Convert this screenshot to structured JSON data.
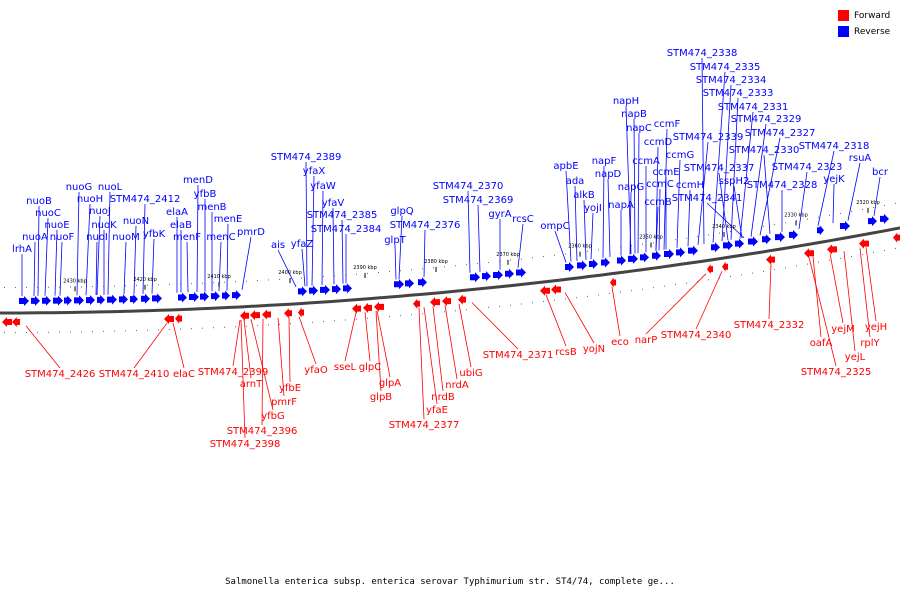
{
  "legend": {
    "forward_label": "Forward",
    "reverse_label": "Reverse",
    "forward_color": "#ff0000",
    "reverse_color": "#0000ff"
  },
  "caption": "Salmonella enterica subsp. enterica serovar Typhimurium str. ST4/74, complete ge...",
  "scale_ticks": [
    "2430 kbp",
    "2420 kbp",
    "2410 kbp",
    "2400 kbp",
    "2390 kbp",
    "2380 kbp",
    "2370 kbp",
    "2360 kbp",
    "2350 kbp",
    "2340 kbp",
    "2330 kbp",
    "2320 kbp"
  ],
  "reverse_genes": [
    "lrhA",
    "nuoA",
    "nuoB",
    "nuoC",
    "nuoE",
    "nuoF",
    "nuoG",
    "nuoH",
    "nuoJ",
    "nuoK",
    "nuoI",
    "nuoL",
    "nuoM",
    "nuoN",
    "STM474_2412",
    "yfbK",
    "elaA",
    "elaB",
    "menF",
    "menD",
    "yfbB",
    "menB",
    "menC",
    "menE",
    "pmrD",
    "ais",
    "yfaZ",
    "STM474_2389",
    "yfaX",
    "yfaW",
    "yfaV",
    "STM474_2385",
    "STM474_2384",
    "glpQ",
    "glpT",
    "STM474_2376",
    "STM474_2370",
    "STM474_2369",
    "gyrA",
    "rcsC",
    "ompC",
    "apbE",
    "ada",
    "alkB",
    "yojI",
    "napF",
    "napD",
    "napA",
    "napG",
    "napH",
    "napB",
    "napC",
    "ccmA",
    "ccmD",
    "ccmF",
    "ccmB",
    "ccmC",
    "ccmE",
    "ccmG",
    "ccmH",
    "STM474_2339",
    "STM474_2338",
    "STM474_2335",
    "STM474_2334",
    "STM474_2333",
    "STM474_2331",
    "STM474_2329",
    "STM474_2327",
    "STM474_2330",
    "STM474_2337",
    "sspH2",
    "STM474_2341",
    "STM474_2328",
    "STM474_2323",
    "STM474_2318",
    "yejK",
    "rsuA",
    "bcr"
  ],
  "forward_genes": [
    "STM474_2426",
    "STM474_2410",
    "elaC",
    "STM474_2399",
    "arnT",
    "yfbG",
    "STM474_2396",
    "STM474_2398",
    "pmrF",
    "yfbE",
    "yfaO",
    "sseL",
    "glpC",
    "glpA",
    "glpB",
    "yfaE",
    "STM474_2377",
    "nrdB",
    "nrdA",
    "ubiG",
    "STM474_2371",
    "rcsB",
    "yojN",
    "eco",
    "narP",
    "STM474_2340",
    "STM474_2332",
    "oafA",
    "yejM",
    "yejL",
    "rplY",
    "yejH",
    "STM474_2325"
  ]
}
